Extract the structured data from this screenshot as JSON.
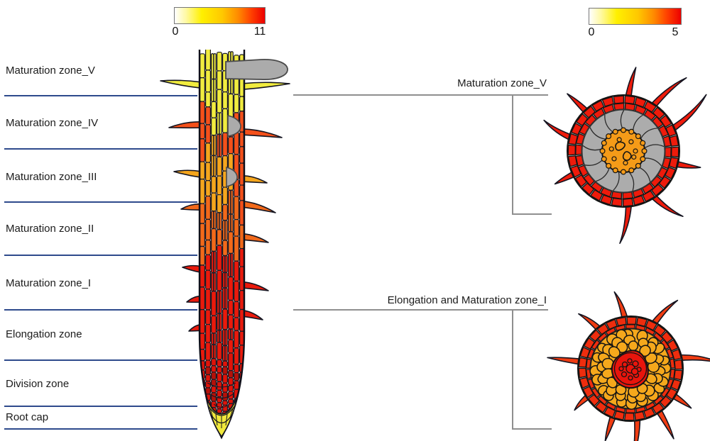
{
  "colorbar_left": {
    "min_label": "0",
    "max_label": "11"
  },
  "colorbar_right": {
    "min_label": "0",
    "max_label": "5"
  },
  "zones": [
    {
      "label": "Maturation zone_V"
    },
    {
      "label": "Maturation zone_IV"
    },
    {
      "label": "Maturation zone_III"
    },
    {
      "label": "Maturation zone_II"
    },
    {
      "label": "Maturation zone_I"
    },
    {
      "label": "Elongation zone"
    },
    {
      "label": "Division zone"
    },
    {
      "label": "Root cap"
    }
  ],
  "callouts": {
    "top": "Maturation zone_V",
    "bottom": "Elongation and Maturation zone_I"
  },
  "colors": {
    "heat_gradient": [
      "#ffffff",
      "#fff9a0",
      "#fff000",
      "#ffc800",
      "#ff8c00",
      "#ff4000",
      "#ec0000"
    ],
    "divider_navy": "#2e4a8c",
    "bracket_gray": "#8f8f8f",
    "zone_v_yellow": "#f1ec3f",
    "zone_iv_vermilion": "#f4501a",
    "zone_iii_amber": "#f5a61d",
    "zone_ii_orange": "#f2691a",
    "zone_i_red": "#ea1a0c",
    "division_red": "#df1309",
    "division_dark": "#b51109",
    "root_cap_yellow": "#f0e83c",
    "gray_organ": "#ababab",
    "cs1_brick_red": "#ee1b0b",
    "cs1_cortex_gray": "#acacac",
    "cs1_stele_orange": "#f59b18",
    "cs2_brick_red": "#ee2d0e",
    "cs2_hair_red": "#f03c12",
    "cs2_pebble_amber": "#f5a81c",
    "cs2_stele_red": "#e8150c"
  }
}
